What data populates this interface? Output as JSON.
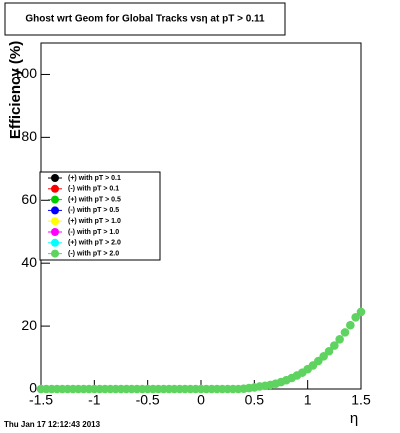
{
  "chart_data": {
    "type": "scatter",
    "title": "Ghost wrt Geom for Global Tracks vsη at pT > 0.11",
    "x_label": "η",
    "y_label": "Efficiency (%)",
    "footer": "Thu Jan 17 12:12:43 2013",
    "xlim": [
      -1.5,
      1.5
    ],
    "ylim": [
      0,
      110
    ],
    "xticks": [
      -1.5,
      -1,
      -0.5,
      0,
      0.5,
      1,
      1.5
    ],
    "yticks": [
      0,
      20,
      40,
      60,
      80,
      100
    ],
    "grid": false,
    "legend": "left",
    "x": [
      -1.5,
      -1.45,
      -1.4,
      -1.35,
      -1.3,
      -1.25,
      -1.2,
      -1.15,
      -1.1,
      -1.05,
      -1,
      -0.95,
      -0.9,
      -0.85,
      -0.8,
      -0.75,
      -0.7,
      -0.65,
      -0.6,
      -0.55,
      -0.5,
      -0.45,
      -0.4,
      -0.35,
      -0.3,
      -0.25,
      -0.2,
      -0.15,
      -0.1,
      -0.05,
      0,
      0.05,
      0.1,
      0.15,
      0.2,
      0.25,
      0.3,
      0.35,
      0.4,
      0.45,
      0.5,
      0.55,
      0.6,
      0.65,
      0.7,
      0.75,
      0.8,
      0.85,
      0.9,
      0.95,
      1,
      1.05,
      1.1,
      1.15,
      1.2,
      1.25,
      1.3,
      1.35,
      1.4,
      1.45,
      1.5
    ],
    "series": [
      {
        "name": "(+) with pT > 0.1",
        "color": "#000000",
        "values": [
          null,
          null,
          null,
          null,
          null,
          null,
          null,
          null,
          null,
          null,
          null,
          null,
          null,
          null,
          null,
          null,
          null,
          null,
          null,
          null,
          null,
          null,
          null,
          null,
          null,
          null,
          null,
          null,
          null,
          null,
          null,
          null,
          null,
          null,
          null,
          null,
          null,
          null,
          null,
          null,
          null,
          null,
          null,
          null,
          null,
          null,
          null,
          null,
          null,
          null,
          null,
          null,
          null,
          null,
          null,
          null,
          null,
          null,
          null,
          null,
          null
        ]
      },
      {
        "name": "(-) with pT > 0.1",
        "color": "#ff0000",
        "values": [
          null,
          null,
          null,
          null,
          null,
          null,
          null,
          null,
          null,
          null,
          null,
          null,
          null,
          null,
          null,
          null,
          null,
          null,
          null,
          null,
          null,
          null,
          null,
          null,
          null,
          null,
          null,
          null,
          null,
          null,
          null,
          null,
          null,
          null,
          null,
          null,
          null,
          null,
          null,
          null,
          null,
          null,
          null,
          null,
          null,
          null,
          null,
          null,
          null,
          null,
          null,
          null,
          null,
          null,
          null,
          null,
          null,
          null,
          null,
          null,
          null
        ]
      },
      {
        "name": "(+) with pT > 0.5",
        "color": "#00cc00",
        "values": [
          null,
          null,
          null,
          null,
          null,
          null,
          null,
          null,
          null,
          null,
          null,
          null,
          null,
          null,
          null,
          null,
          null,
          null,
          null,
          null,
          null,
          null,
          null,
          null,
          null,
          null,
          null,
          null,
          null,
          null,
          null,
          null,
          null,
          null,
          null,
          null,
          null,
          null,
          null,
          null,
          null,
          null,
          null,
          null,
          null,
          null,
          null,
          null,
          null,
          null,
          null,
          null,
          null,
          null,
          null,
          null,
          null,
          null,
          null,
          null,
          null
        ]
      },
      {
        "name": "(-) with pT > 0.5",
        "color": "#0000ff",
        "values": [
          null,
          null,
          null,
          null,
          null,
          null,
          null,
          null,
          null,
          null,
          null,
          null,
          null,
          null,
          null,
          null,
          null,
          null,
          null,
          null,
          null,
          null,
          null,
          null,
          null,
          null,
          null,
          null,
          null,
          null,
          null,
          null,
          null,
          null,
          null,
          null,
          null,
          null,
          null,
          null,
          null,
          null,
          null,
          null,
          null,
          null,
          null,
          null,
          null,
          null,
          null,
          null,
          null,
          null,
          null,
          null,
          null,
          null,
          null,
          null,
          null
        ]
      },
      {
        "name": "(+) with pT > 1.0",
        "color": "#ffff00",
        "values": [
          null,
          null,
          null,
          null,
          null,
          null,
          null,
          null,
          null,
          null,
          null,
          null,
          null,
          null,
          null,
          null,
          null,
          null,
          null,
          null,
          null,
          null,
          null,
          null,
          null,
          null,
          null,
          null,
          null,
          null,
          null,
          null,
          null,
          null,
          null,
          null,
          null,
          null,
          null,
          null,
          null,
          null,
          null,
          null,
          null,
          null,
          null,
          null,
          null,
          null,
          null,
          null,
          null,
          null,
          null,
          null,
          null,
          null,
          null,
          null,
          null
        ]
      },
      {
        "name": "(-) with pT > 1.0",
        "color": "#ff00ff",
        "values": [
          null,
          null,
          null,
          null,
          null,
          null,
          null,
          null,
          null,
          null,
          null,
          null,
          null,
          null,
          null,
          null,
          null,
          null,
          null,
          null,
          null,
          null,
          null,
          null,
          null,
          null,
          null,
          null,
          null,
          null,
          null,
          null,
          null,
          null,
          null,
          null,
          null,
          null,
          null,
          null,
          null,
          null,
          null,
          null,
          null,
          null,
          null,
          null,
          null,
          null,
          null,
          null,
          null,
          null,
          null,
          null,
          null,
          null,
          null,
          null,
          null
        ]
      },
      {
        "name": "(+) with pT > 2.0",
        "color": "#00ffff",
        "values": [
          null,
          null,
          null,
          null,
          null,
          null,
          null,
          null,
          null,
          null,
          null,
          null,
          null,
          null,
          null,
          null,
          null,
          null,
          null,
          null,
          null,
          null,
          null,
          null,
          null,
          null,
          null,
          null,
          null,
          null,
          null,
          null,
          null,
          null,
          null,
          null,
          null,
          null,
          null,
          null,
          null,
          null,
          null,
          null,
          null,
          null,
          null,
          null,
          null,
          null,
          null,
          null,
          null,
          null,
          null,
          null,
          null,
          null,
          null,
          null,
          null
        ]
      },
      {
        "name": "(-) with pT > 2.0",
        "color": "#5fd35f",
        "values": [
          0,
          0,
          0,
          0,
          0,
          0,
          0,
          0,
          0,
          0,
          0,
          0,
          0,
          0,
          0,
          0,
          0,
          0,
          0,
          0,
          0,
          0,
          0,
          0,
          0,
          0,
          0,
          0,
          0,
          0,
          0,
          0,
          0,
          0,
          0,
          0,
          0,
          0,
          0.1,
          0.3,
          0.5,
          0.8,
          1,
          1.3,
          1.7,
          2.2,
          2.8,
          3.5,
          4.3,
          5.2,
          6.3,
          7.5,
          8.9,
          10.4,
          12,
          13.8,
          15.8,
          18,
          20.3,
          22.8,
          24.5
        ]
      }
    ]
  }
}
